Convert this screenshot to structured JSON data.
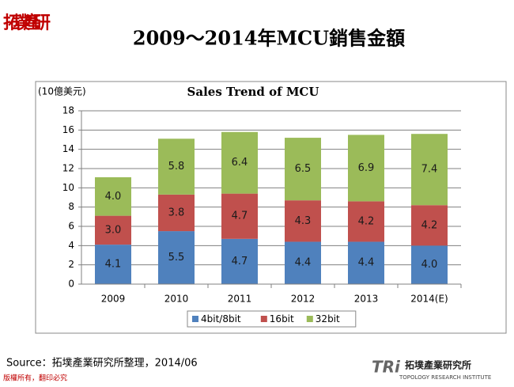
{
  "slide": {
    "title": "2009～2014年MCU銷售金額",
    "logo_text": "拓墣產研",
    "source": "Source：拓墣產業研究所整理，2014/06",
    "copyright": "版權所有，翻印必究",
    "brand_mark": "TRi",
    "brand_name": "拓墣產業研究所",
    "brand_subtitle": "TOPOLOGY RESEARCH INSTITUTE"
  },
  "chart_data": {
    "type": "stacked_bar",
    "title": "Sales Trend of MCU",
    "y_label": "(10億美元)",
    "categories": [
      "2009",
      "2010",
      "2011",
      "2012",
      "2013",
      "2014(E)"
    ],
    "series": [
      {
        "name": "4bit/8bit",
        "color": "#4f81bd",
        "values": [
          4.1,
          5.5,
          4.7,
          4.4,
          4.4,
          4.0
        ],
        "value_labels": [
          "4.1",
          "5.5",
          "4.7",
          "4.4",
          "4.4",
          "4.0"
        ]
      },
      {
        "name": "16bit",
        "color": "#c0504d",
        "values": [
          3.0,
          3.8,
          4.7,
          4.3,
          4.2,
          4.2
        ],
        "value_labels": [
          "3.0",
          "3.8",
          "4.7",
          "4.3",
          "4.2",
          "4.2"
        ]
      },
      {
        "name": "32bit",
        "color": "#9bbb59",
        "values": [
          4.0,
          5.8,
          6.4,
          6.5,
          6.9,
          7.4
        ],
        "value_labels": [
          "4.0",
          "5.8",
          "6.4",
          "6.5",
          "6.9",
          "7.4"
        ]
      }
    ],
    "ylim": [
      0,
      18
    ],
    "yticks": [
      0,
      2,
      4,
      6,
      8,
      10,
      12,
      14,
      16,
      18
    ],
    "grid": true,
    "legend": "bottom"
  }
}
